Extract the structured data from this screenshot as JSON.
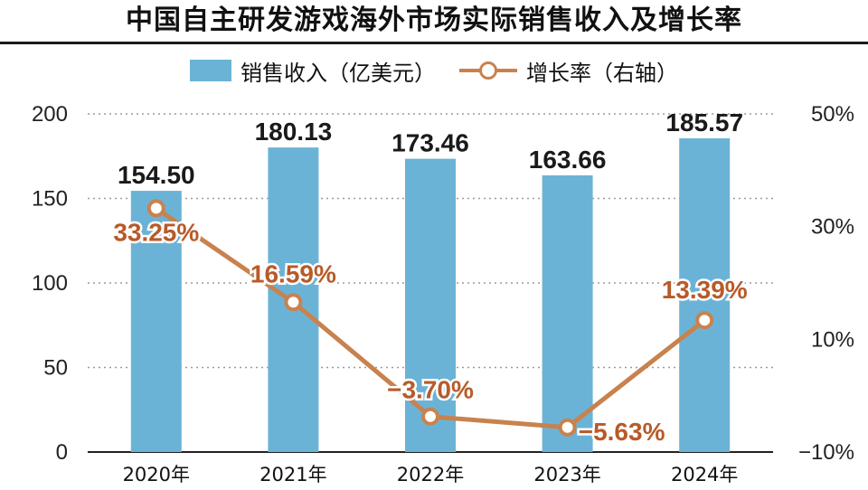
{
  "title": "中国自主研发游戏海外市场实际销售收入及增长率",
  "legend": {
    "bar_label": "销售收入（亿美元）",
    "line_label": "增长率（右轴）"
  },
  "colors": {
    "bar": "#6bb3d6",
    "line": "#c8824e",
    "rate_label": "#b85a28",
    "grid": "#9a9a9a"
  },
  "chart_data": {
    "type": "bar",
    "categories": [
      "2020年",
      "2021年",
      "2022年",
      "2023年",
      "2024年"
    ],
    "series": [
      {
        "name": "销售收入（亿美元）",
        "type": "bar",
        "axis": "left",
        "values": [
          154.5,
          180.13,
          173.46,
          163.66,
          185.57
        ],
        "labels": [
          "154.50",
          "180.13",
          "173.46",
          "163.66",
          "185.57"
        ]
      },
      {
        "name": "增长率（右轴）",
        "type": "line",
        "axis": "right",
        "values": [
          33.25,
          16.59,
          -3.7,
          -5.63,
          13.39
        ],
        "labels": [
          "33.25%",
          "16.59%",
          "−3.70%",
          "−5.63%",
          "13.39%"
        ]
      }
    ],
    "y_left": {
      "ylim": [
        0,
        200
      ],
      "ticks": [
        "0",
        "50",
        "100",
        "150",
        "200"
      ]
    },
    "y_right": {
      "ylim": [
        -10,
        50
      ],
      "ticks": [
        "−10%",
        "10%",
        "30%",
        "50%"
      ]
    },
    "grid": true,
    "legend_position": "top-center"
  }
}
